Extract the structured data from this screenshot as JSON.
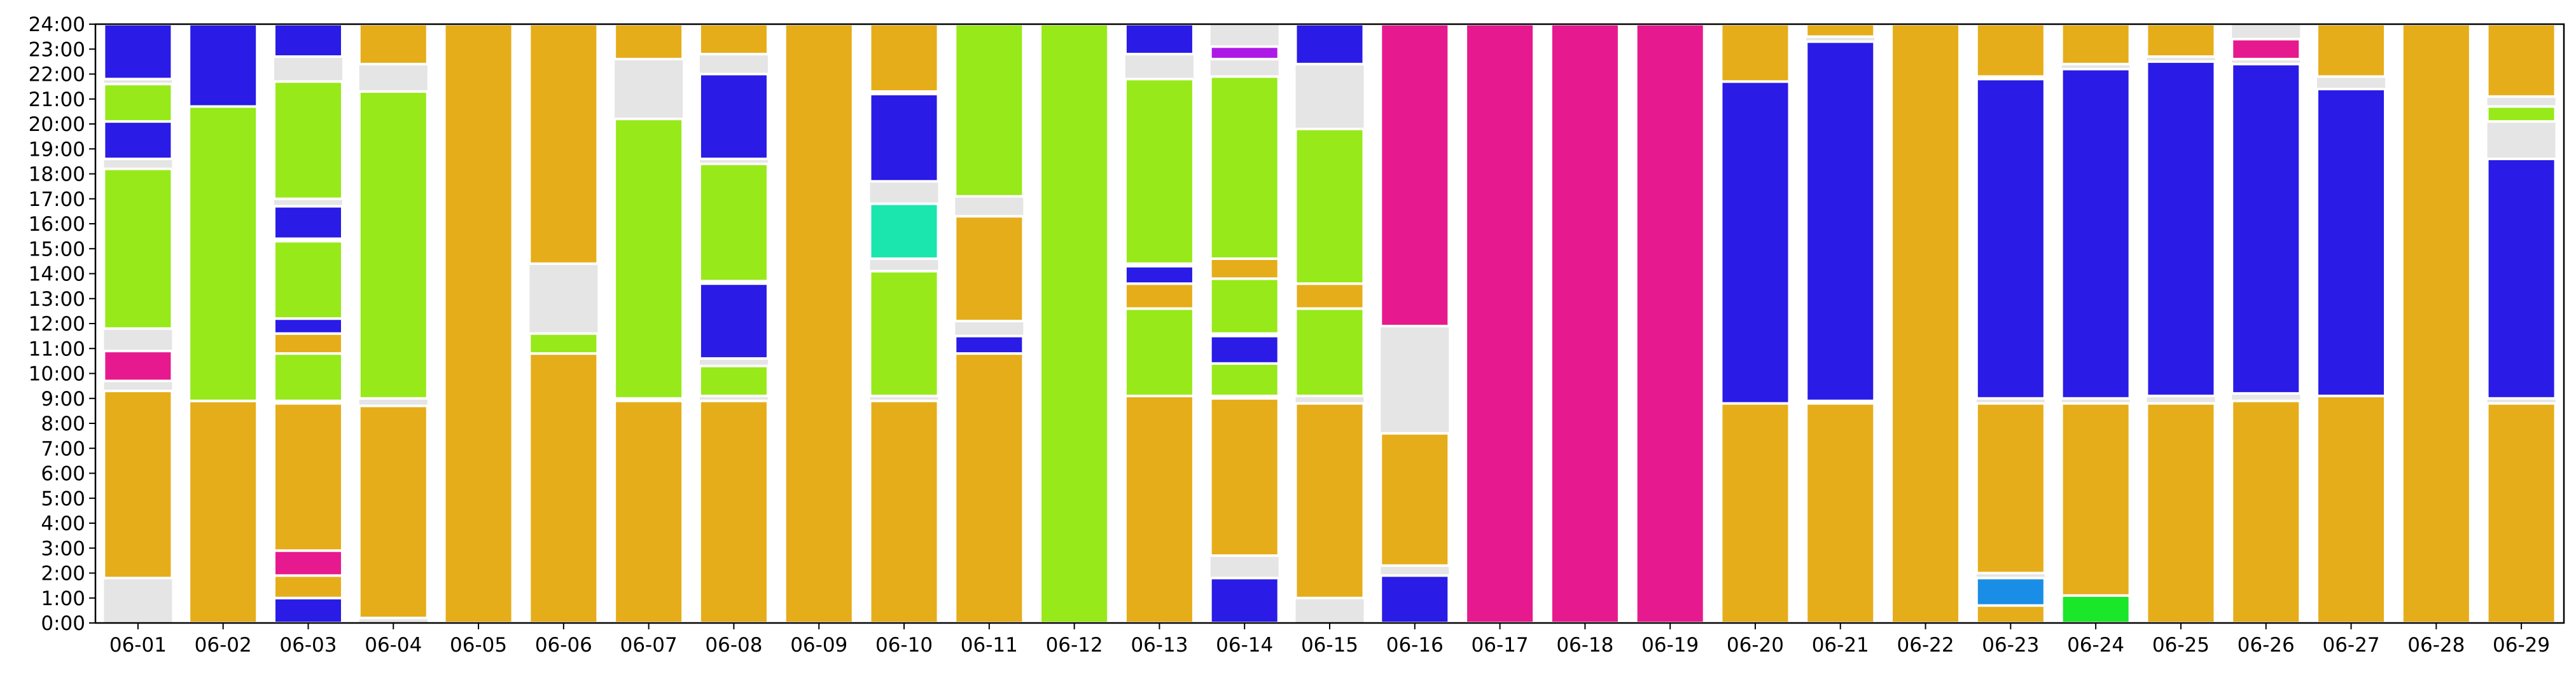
{
  "chart_data": {
    "type": "bar",
    "title": "",
    "xlabel": "",
    "ylabel": "",
    "ylim": [
      0,
      24
    ],
    "grid": false,
    "legend": "none",
    "categories": [
      "06-01",
      "06-02",
      "06-03",
      "06-04",
      "06-05",
      "06-06",
      "06-07",
      "06-08",
      "06-09",
      "06-10",
      "06-11",
      "06-12",
      "06-13",
      "06-14",
      "06-15",
      "06-16",
      "06-17",
      "06-18",
      "06-19",
      "06-20",
      "06-21",
      "06-22",
      "06-23",
      "06-24",
      "06-25",
      "06-26",
      "06-27",
      "06-28",
      "06-29"
    ],
    "y_ticks": [
      "0:00",
      "1:00",
      "2:00",
      "3:00",
      "4:00",
      "5:00",
      "6:00",
      "7:00",
      "8:00",
      "9:00",
      "10:00",
      "11:00",
      "12:00",
      "13:00",
      "14:00",
      "15:00",
      "16:00",
      "17:00",
      "18:00",
      "19:00",
      "20:00",
      "21:00",
      "22:00",
      "23:00",
      "24:00"
    ],
    "background_color": "#e5e5e5",
    "activity_colors": {
      "orange": "#e6ad1a",
      "blue": "#2a1be6",
      "lime": "#97e91a",
      "magenta": "#e61a8e",
      "teal": "#1ae6ae",
      "purple": "#ad1ae6",
      "sky": "#1a8ee6",
      "green": "#1ae62a"
    },
    "segments": [
      [
        [
          1.8,
          9.3,
          "orange"
        ],
        [
          9.7,
          10.9,
          "magenta"
        ],
        [
          11.8,
          18.2,
          "lime"
        ],
        [
          18.6,
          20.1,
          "blue"
        ],
        [
          20.1,
          21.6,
          "lime"
        ],
        [
          21.8,
          24,
          "blue"
        ]
      ],
      [
        [
          0,
          8.9,
          "orange"
        ],
        [
          8.9,
          20.7,
          "lime"
        ],
        [
          20.7,
          24,
          "blue"
        ]
      ],
      [
        [
          0,
          1.0,
          "blue"
        ],
        [
          1.0,
          1.9,
          "orange"
        ],
        [
          1.9,
          2.9,
          "magenta"
        ],
        [
          2.9,
          8.8,
          "orange"
        ],
        [
          8.9,
          10.8,
          "lime"
        ],
        [
          10.8,
          11.6,
          "orange"
        ],
        [
          11.6,
          12.2,
          "blue"
        ],
        [
          12.2,
          15.3,
          "lime"
        ],
        [
          15.4,
          16.7,
          "blue"
        ],
        [
          17.0,
          21.7,
          "lime"
        ],
        [
          22.7,
          24,
          "blue"
        ]
      ],
      [
        [
          0.2,
          8.7,
          "orange"
        ],
        [
          9.0,
          21.3,
          "lime"
        ],
        [
          22.4,
          24,
          "orange"
        ]
      ],
      [
        [
          0,
          24,
          "orange"
        ]
      ],
      [
        [
          0,
          10.8,
          "orange"
        ],
        [
          10.8,
          11.6,
          "lime"
        ],
        [
          14.4,
          24,
          "orange"
        ]
      ],
      [
        [
          0,
          8.9,
          "orange"
        ],
        [
          9.0,
          20.2,
          "lime"
        ],
        [
          22.6,
          24,
          "orange"
        ]
      ],
      [
        [
          0,
          8.9,
          "orange"
        ],
        [
          9.1,
          10.3,
          "lime"
        ],
        [
          10.6,
          13.6,
          "blue"
        ],
        [
          13.7,
          18.4,
          "lime"
        ],
        [
          18.6,
          22.0,
          "blue"
        ],
        [
          22.8,
          24,
          "orange"
        ]
      ],
      [
        [
          0,
          24,
          "orange"
        ]
      ],
      [
        [
          0,
          8.9,
          "orange"
        ],
        [
          9.1,
          14.1,
          "lime"
        ],
        [
          14.6,
          16.8,
          "teal"
        ],
        [
          17.7,
          21.2,
          "blue"
        ],
        [
          21.3,
          24,
          "orange"
        ]
      ],
      [
        [
          0,
          10.8,
          "orange"
        ],
        [
          10.8,
          11.5,
          "blue"
        ],
        [
          12.1,
          16.3,
          "orange"
        ],
        [
          17.1,
          24,
          "lime"
        ]
      ],
      [
        [
          0,
          24,
          "lime"
        ]
      ],
      [
        [
          0,
          9.1,
          "orange"
        ],
        [
          9.1,
          12.6,
          "lime"
        ],
        [
          12.6,
          13.6,
          "orange"
        ],
        [
          13.6,
          14.3,
          "blue"
        ],
        [
          14.4,
          21.8,
          "lime"
        ],
        [
          22.8,
          24,
          "blue"
        ]
      ],
      [
        [
          0,
          1.8,
          "blue"
        ],
        [
          2.7,
          9.0,
          "orange"
        ],
        [
          9.1,
          10.4,
          "lime"
        ],
        [
          10.4,
          11.5,
          "blue"
        ],
        [
          11.6,
          13.8,
          "lime"
        ],
        [
          13.8,
          14.6,
          "orange"
        ],
        [
          14.6,
          21.9,
          "lime"
        ],
        [
          22.6,
          23.1,
          "purple"
        ]
      ],
      [
        [
          1.0,
          8.8,
          "orange"
        ],
        [
          9.1,
          12.6,
          "lime"
        ],
        [
          12.6,
          13.6,
          "orange"
        ],
        [
          13.6,
          19.8,
          "lime"
        ],
        [
          22.4,
          24,
          "blue"
        ]
      ],
      [
        [
          0,
          1.9,
          "blue"
        ],
        [
          2.3,
          7.6,
          "orange"
        ],
        [
          11.9,
          24,
          "magenta"
        ]
      ],
      [
        [
          0,
          24,
          "magenta"
        ]
      ],
      [
        [
          0,
          24,
          "magenta"
        ]
      ],
      [
        [
          0,
          24,
          "magenta"
        ]
      ],
      [
        [
          0,
          8.8,
          "orange"
        ],
        [
          8.8,
          21.7,
          "blue"
        ],
        [
          21.7,
          24,
          "orange"
        ]
      ],
      [
        [
          0,
          8.8,
          "orange"
        ],
        [
          8.9,
          23.3,
          "blue"
        ],
        [
          23.5,
          24,
          "orange"
        ]
      ],
      [
        [
          0,
          24,
          "orange"
        ]
      ],
      [
        [
          0,
          0.7,
          "orange"
        ],
        [
          0.7,
          1.8,
          "sky"
        ],
        [
          2.0,
          8.8,
          "orange"
        ],
        [
          9.0,
          21.8,
          "blue"
        ],
        [
          21.9,
          24,
          "orange"
        ]
      ],
      [
        [
          0,
          1.1,
          "green"
        ],
        [
          1.1,
          8.8,
          "orange"
        ],
        [
          9.0,
          22.2,
          "blue"
        ],
        [
          22.4,
          24,
          "orange"
        ]
      ],
      [
        [
          0,
          8.8,
          "orange"
        ],
        [
          9.1,
          22.5,
          "blue"
        ],
        [
          22.7,
          24,
          "orange"
        ]
      ],
      [
        [
          0,
          8.9,
          "orange"
        ],
        [
          9.2,
          22.4,
          "blue"
        ],
        [
          22.6,
          23.4,
          "magenta"
        ]
      ],
      [
        [
          0,
          9.1,
          "orange"
        ],
        [
          9.1,
          21.4,
          "blue"
        ],
        [
          21.9,
          24,
          "orange"
        ]
      ],
      [
        [
          0,
          24,
          "orange"
        ]
      ],
      [
        [
          0,
          8.8,
          "orange"
        ],
        [
          9.0,
          18.6,
          "blue"
        ],
        [
          20.1,
          20.7,
          "lime"
        ],
        [
          21.1,
          24,
          "orange"
        ]
      ]
    ]
  }
}
